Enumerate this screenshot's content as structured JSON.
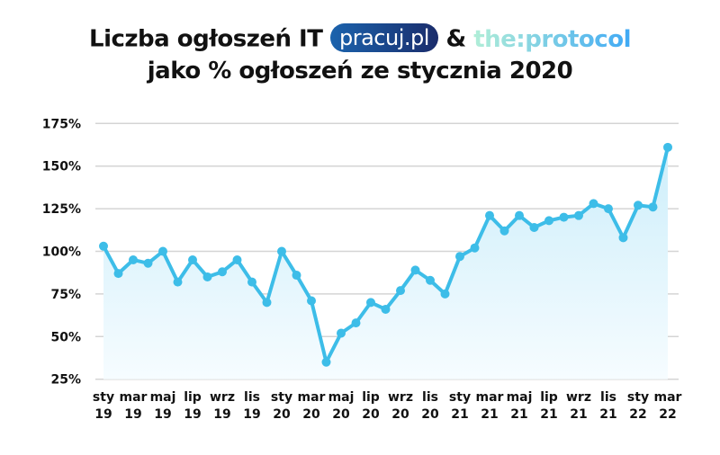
{
  "title": {
    "line1_prefix": "Liczba ogłoszeń IT",
    "brand1": "pracuj.pl",
    "ampersand": "&",
    "brand2": "the:protocol",
    "line2": "jako % ogłoszeń ze stycznia 2020"
  },
  "chart_data": {
    "type": "area",
    "title": "Liczba ogłoszeń IT pracuj.pl & the:protocol jako % ogłoszeń ze stycznia 2020",
    "xlabel": "",
    "ylabel": "",
    "x": [
      "sty 19",
      "lut 19",
      "mar 19",
      "kwi 19",
      "maj 19",
      "cze 19",
      "lip 19",
      "sie 19",
      "wrz 19",
      "paź 19",
      "lis 19",
      "gru 19",
      "sty 20",
      "lut 20",
      "mar 20",
      "kwi 20",
      "maj 20",
      "cze 20",
      "lip 20",
      "sie 20",
      "wrz 20",
      "paź 20",
      "lis 20",
      "gru 20",
      "sty 21",
      "lut 21",
      "mar 21",
      "kwi 21",
      "maj 21",
      "cze 21",
      "lip 21",
      "sie 21",
      "wrz 21",
      "paź 21",
      "lis 21",
      "gru 21",
      "sty 22",
      "lut 22",
      "mar 22"
    ],
    "values": [
      103,
      87,
      95,
      93,
      100,
      82,
      95,
      85,
      88,
      95,
      82,
      70,
      100,
      86,
      71,
      35,
      52,
      58,
      70,
      66,
      77,
      89,
      83,
      75,
      97,
      102,
      121,
      112,
      121,
      114,
      118,
      120,
      121,
      128,
      125,
      108,
      127,
      126,
      161
    ],
    "x_tick_labels": [
      [
        "sty",
        "19"
      ],
      [
        "mar",
        "19"
      ],
      [
        "maj",
        "19"
      ],
      [
        "lip",
        "19"
      ],
      [
        "wrz",
        "19"
      ],
      [
        "lis",
        "19"
      ],
      [
        "sty",
        "20"
      ],
      [
        "mar",
        "20"
      ],
      [
        "maj",
        "20"
      ],
      [
        "lip",
        "20"
      ],
      [
        "wrz",
        "20"
      ],
      [
        "lis",
        "20"
      ],
      [
        "sty",
        "21"
      ],
      [
        "mar",
        "21"
      ],
      [
        "maj",
        "21"
      ],
      [
        "lip",
        "21"
      ],
      [
        "wrz",
        "21"
      ],
      [
        "lis",
        "21"
      ],
      [
        "sty",
        "22"
      ],
      [
        "mar",
        "22"
      ]
    ],
    "y_ticks": [
      25,
      50,
      75,
      100,
      125,
      150,
      175
    ],
    "y_tick_labels": [
      "25%",
      "50%",
      "75%",
      "100%",
      "125%",
      "150%",
      "175%"
    ],
    "ylim": [
      25,
      175
    ],
    "grid": true,
    "colors": {
      "line": "#3dbde8",
      "fill": "#d8f1fb",
      "grid": "#d4d4d4"
    }
  }
}
